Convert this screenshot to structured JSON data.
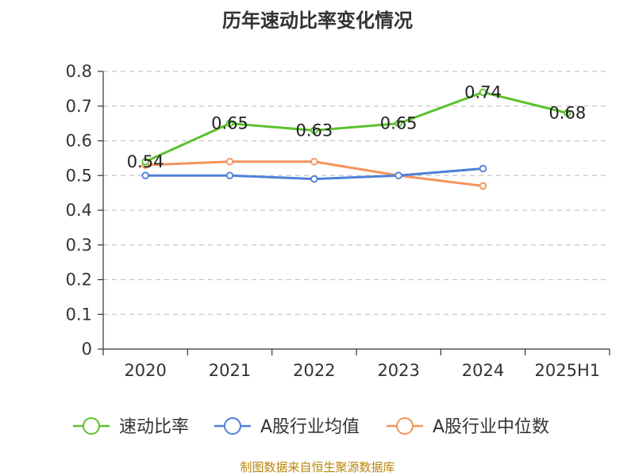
{
  "chart_data": {
    "type": "line",
    "title": "历年速动比率变化情况",
    "categories": [
      "2020",
      "2021",
      "2022",
      "2023",
      "2024",
      "2025H1"
    ],
    "ylim": [
      0,
      0.8
    ],
    "yticks": [
      "0",
      "0.1",
      "0.2",
      "0.3",
      "0.4",
      "0.5",
      "0.6",
      "0.7",
      "0.8"
    ],
    "grid": true,
    "legend_position": "bottom",
    "series": [
      {
        "name": "速动比率",
        "color": "#5cc12e",
        "values": [
          0.54,
          0.65,
          0.63,
          0.65,
          0.74,
          0.68
        ],
        "labels": [
          "0.54",
          "0.65",
          "0.63",
          "0.65",
          "0.74",
          "0.68"
        ]
      },
      {
        "name": "A股行业均值",
        "color": "#4f7fd8",
        "values": [
          0.5,
          0.5,
          0.49,
          0.5,
          0.52,
          null
        ]
      },
      {
        "name": "A股行业中位数",
        "color": "#f5935a",
        "values": [
          0.53,
          0.54,
          0.54,
          0.5,
          0.47,
          null
        ]
      }
    ]
  },
  "source": "制图数据来自恒生聚源数据库"
}
